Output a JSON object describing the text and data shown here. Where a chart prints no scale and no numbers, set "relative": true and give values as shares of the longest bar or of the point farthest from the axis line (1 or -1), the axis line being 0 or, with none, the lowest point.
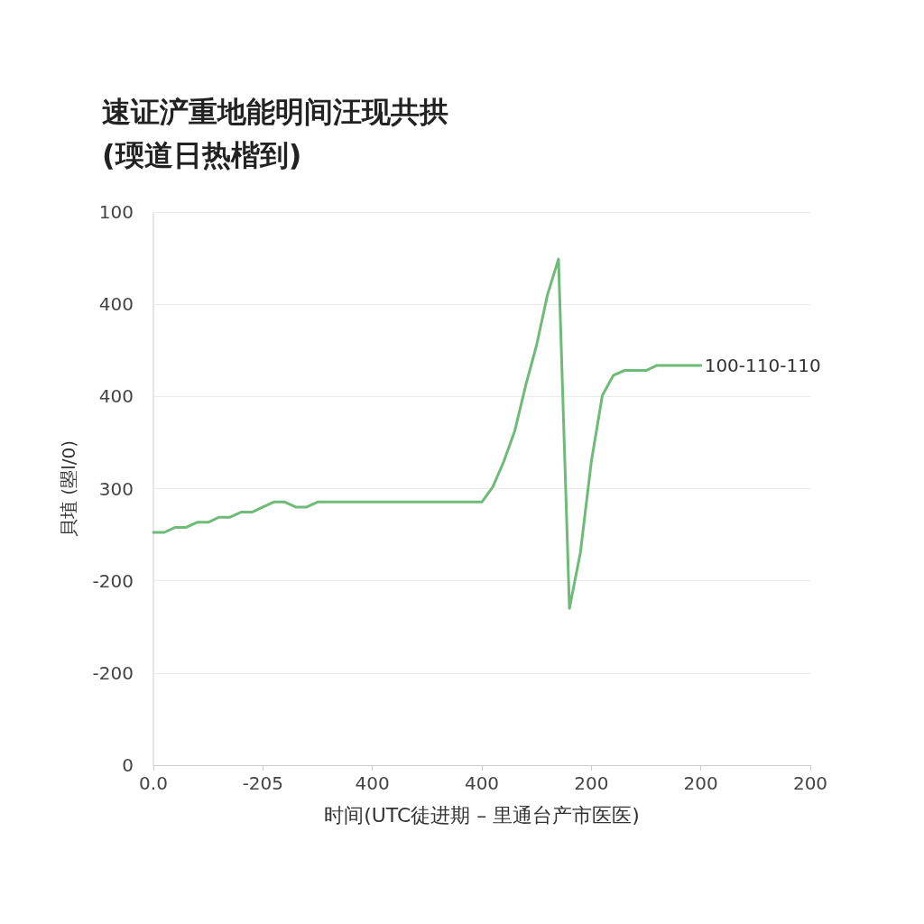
{
  "chart_data": {
    "type": "line",
    "title": "速证浐重地能明间汪现共拱\n(瑌道日热楷到)",
    "xlabel": "时间(UTC徒进期 – 里通台产市医医)",
    "ylabel": "貝埴 (曌l/0)",
    "relative": true,
    "categories": [
      "0.0",
      null,
      null,
      null,
      null,
      null,
      null,
      null,
      null,
      null,
      "-205",
      null,
      null,
      null,
      null,
      null,
      null,
      null,
      null,
      null,
      "400",
      null,
      null,
      null,
      null,
      null,
      null,
      null,
      null,
      null,
      "400",
      null,
      null,
      null,
      null,
      null,
      null,
      null,
      null,
      null,
      "200",
      null,
      null,
      null,
      null,
      null,
      null,
      null,
      null,
      null,
      "200",
      null,
      null,
      null,
      null,
      null,
      null,
      null,
      null,
      null,
      "200"
    ],
    "series": [
      {
        "color": "#6dbb77",
        "values": [
          0.46,
          0.46,
          0.47,
          0.47,
          0.48,
          0.48,
          0.49,
          0.49,
          0.5,
          0.5,
          0.51,
          0.52,
          0.52,
          0.51,
          0.51,
          0.52,
          0.52,
          0.52,
          0.52,
          0.52,
          0.52,
          0.52,
          0.52,
          0.52,
          0.52,
          0.52,
          0.52,
          0.52,
          0.52,
          0.52,
          0.52,
          0.55,
          0.6,
          0.66,
          0.75,
          0.83,
          0.93,
          1,
          0.31,
          0.42,
          0.6,
          0.73,
          0.77,
          0.78,
          0.78,
          0.78,
          0.79,
          0.79,
          0.79,
          0.79,
          0.79,
          null,
          null,
          null,
          null,
          null,
          null,
          null,
          null,
          null,
          null
        ]
      }
    ],
    "annotations": [
      "100",
      "400",
      "400",
      "300",
      "-200",
      "-200",
      "0",
      "100-110-110"
    ],
    "grid": "y",
    "marker": "none",
    "line_style": "solid"
  }
}
